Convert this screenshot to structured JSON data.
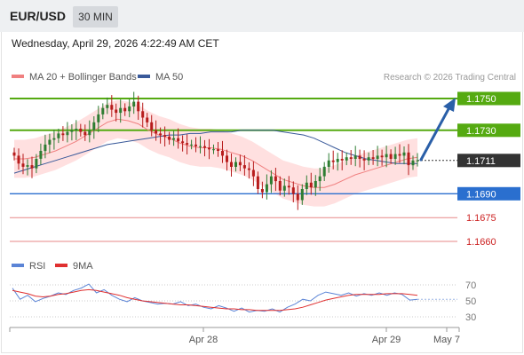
{
  "header": {
    "symbol": "EUR/USD",
    "timeframe": "30 MIN",
    "datetime": "Wednesday, April 29, 2026 4:22:49 AM CET"
  },
  "legend": {
    "ma20_label": "MA 20 + Bollinger Bands",
    "ma50_label": "MA 50",
    "credit": "Research © 2026 Trading Central"
  },
  "rsi_legend": {
    "rsi_label": "RSI",
    "ma_label": "9MA"
  },
  "colors": {
    "candle_up": "#2e7d32",
    "candle_down": "#b71c1c",
    "bollinger_fill": "#ffd6d6",
    "ma20": "#f08080",
    "ma50": "#3a5a9a",
    "resistance": "#55aa11",
    "current": "#333333",
    "support": "#2a6fcf",
    "target_line": "#e06060",
    "arrow": "#2a5fa8",
    "rsi": "#5b84d6",
    "rsi_ma": "#e03030"
  },
  "chart_data": [
    {
      "type": "candlestick",
      "title": "EUR/USD 30 MIN",
      "ylim": [
        1.165,
        1.1762
      ],
      "x_ticks": [
        "Apr 28",
        "Apr 29",
        "May 7"
      ],
      "levels": [
        {
          "label": "1.1750",
          "value": 1.175,
          "kind": "resistance"
        },
        {
          "label": "1.1730",
          "value": 1.173,
          "kind": "resistance"
        },
        {
          "label": "1.1711",
          "value": 1.1711,
          "kind": "current"
        },
        {
          "label": "1.1690",
          "value": 1.169,
          "kind": "support"
        },
        {
          "label": "1.1675",
          "value": 1.1675,
          "kind": "target"
        },
        {
          "label": "1.1660",
          "value": 1.166,
          "kind": "target"
        }
      ],
      "closes": [
        1.1714,
        1.1709,
        1.1707,
        1.1708,
        1.1706,
        1.1712,
        1.1717,
        1.1721,
        1.1724,
        1.1725,
        1.1728,
        1.1727,
        1.1729,
        1.173,
        1.1731,
        1.1729,
        1.1727,
        1.173,
        1.1735,
        1.174,
        1.1744,
        1.1746,
        1.1743,
        1.1741,
        1.1744,
        1.1742,
        1.1745,
        1.1748,
        1.1742,
        1.1738,
        1.1735,
        1.173,
        1.1728,
        1.1727,
        1.1726,
        1.1724,
        1.1725,
        1.1723,
        1.1722,
        1.1721,
        1.1721,
        1.172,
        1.172,
        1.1719,
        1.1718,
        1.1718,
        1.1717,
        1.1714,
        1.171,
        1.1707,
        1.171,
        1.1708,
        1.1706,
        1.1705,
        1.1701,
        1.1693,
        1.1691,
        1.1696,
        1.1701,
        1.1698,
        1.1692,
        1.1695,
        1.1694,
        1.169,
        1.1686,
        1.1693,
        1.1697,
        1.1694,
        1.1698,
        1.1701,
        1.1707,
        1.1711,
        1.171,
        1.1712,
        1.1711,
        1.1713,
        1.1712,
        1.1714,
        1.1712,
        1.1711,
        1.1713,
        1.1712,
        1.1714,
        1.1713,
        1.1715,
        1.1712,
        1.1715,
        1.1714,
        1.1716,
        1.1708,
        1.1711,
        1.1711
      ],
      "ma50": [
        1.1703,
        1.1705,
        1.1707,
        1.1709,
        1.1711,
        1.1713,
        1.1715,
        1.1717,
        1.1719,
        1.1721,
        1.1722,
        1.1723,
        1.1724,
        1.1725,
        1.1726,
        1.1727,
        1.1727,
        1.1728,
        1.1728,
        1.1729,
        1.1729,
        1.1729,
        1.173,
        1.173,
        1.173,
        1.173,
        1.1729,
        1.1728,
        1.1727,
        1.1725,
        1.1722,
        1.1719,
        1.1716,
        1.1714,
        1.1712,
        1.1711,
        1.171,
        1.1709,
        1.1709,
        1.1709
      ],
      "ma20": [
        1.1712,
        1.1712,
        1.1713,
        1.1715,
        1.1717,
        1.172,
        1.1723,
        1.1727,
        1.1731,
        1.1735,
        1.1737,
        1.1736,
        1.1734,
        1.173,
        1.1727,
        1.1725,
        1.1722,
        1.172,
        1.1719,
        1.1719,
        1.1718,
        1.1716,
        1.1714,
        1.1711,
        1.1707,
        1.1703,
        1.1699,
        1.1697,
        1.1695,
        1.1694,
        1.1694,
        1.1696,
        1.1699,
        1.1702,
        1.1704,
        1.1706,
        1.1708,
        1.171,
        1.1712,
        1.1713
      ]
    },
    {
      "type": "line",
      "title": "RSI",
      "ylim": [
        20,
        80
      ],
      "y_ticks": [
        70,
        50,
        30
      ],
      "series": [
        {
          "name": "RSI",
          "values": [
            66,
            52,
            57,
            49,
            53,
            56,
            60,
            58,
            63,
            66,
            71,
            60,
            64,
            57,
            52,
            49,
            54,
            50,
            48,
            46,
            47,
            46,
            49,
            44,
            46,
            42,
            40,
            44,
            41,
            37,
            41,
            36,
            38,
            37,
            40,
            36,
            42,
            46,
            52,
            50,
            57,
            61,
            59,
            57,
            60,
            56,
            59,
            57,
            60,
            57,
            60,
            58,
            51,
            52
          ]
        },
        {
          "name": "9MA",
          "values": [
            63,
            61,
            59,
            56,
            55,
            56,
            58,
            59,
            61,
            63,
            64,
            63,
            61,
            59,
            57,
            54,
            52,
            50,
            49,
            48,
            47,
            46,
            45,
            45,
            44,
            43,
            42,
            41,
            40,
            40,
            39,
            39,
            38,
            38,
            38,
            38,
            39,
            40,
            42,
            45,
            48,
            51,
            53,
            55,
            57,
            58,
            58,
            58,
            58,
            59,
            59,
            59,
            58,
            57
          ]
        }
      ]
    }
  ]
}
